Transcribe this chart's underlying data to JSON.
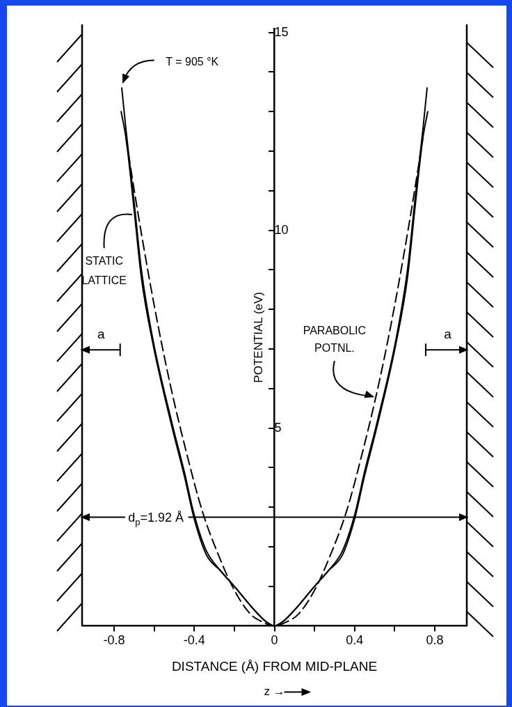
{
  "chart_data": {
    "type": "line",
    "xlabel": "DISTANCE (Å) FROM MID-PLANE",
    "ylabel": "POTENTIAL (eV)",
    "xlim": [
      -0.96,
      0.96
    ],
    "ylim": [
      0,
      15.1
    ],
    "xticks": [
      -0.8,
      {
        "value": -0.6,
        "label": null
      },
      -0.4,
      {
        "value": -0.2,
        "label": null
      },
      0,
      {
        "value": 0.2,
        "label": null
      },
      0.4,
      {
        "value": 0.6,
        "label": null
      },
      0.8
    ],
    "yticks": [
      {
        "value": 1,
        "label": null
      },
      {
        "value": 2,
        "label": null
      },
      {
        "value": 3,
        "label": null
      },
      {
        "value": 4,
        "label": null
      },
      5,
      {
        "value": 6,
        "label": null
      },
      {
        "value": 7,
        "label": null
      },
      {
        "value": 8,
        "label": null
      },
      {
        "value": 9,
        "label": null
      },
      10,
      {
        "value": 11,
        "label": null
      },
      {
        "value": 12,
        "label": null
      },
      {
        "value": 13,
        "label": null
      },
      {
        "value": 14,
        "label": null
      },
      15
    ],
    "grid": false,
    "legend": false,
    "marker": "none",
    "line_style": "solid",
    "series": [
      {
        "name": "STATIC LATTICE",
        "color": "#000000",
        "x": [
          -0.765,
          -0.74,
          -0.7,
          -0.664,
          -0.605,
          -0.51,
          -0.45,
          -0.4,
          -0.34,
          -0.27,
          -0.2,
          -0.1,
          -0.04,
          0,
          0.04,
          0.1,
          0.2,
          0.27,
          0.34,
          0.4,
          0.45,
          0.51,
          0.605,
          0.664,
          0.7,
          0.74,
          0.765
        ],
        "values": [
          13.0,
          12.3,
          10.5,
          8.8,
          7.1,
          5.0,
          3.8,
          2.7,
          1.8,
          1.4,
          1.0,
          0.4,
          0.1,
          0,
          0.1,
          0.4,
          1.0,
          1.4,
          1.8,
          2.7,
          3.8,
          5.0,
          7.1,
          8.8,
          10.5,
          12.3,
          13.0
        ]
      },
      {
        "name": "T = 905 °K",
        "color": "#000000",
        "x": [
          -0.762,
          -0.74,
          -0.7,
          -0.664,
          -0.605,
          -0.51,
          -0.45,
          -0.4,
          -0.34,
          -0.27,
          -0.2,
          -0.1,
          -0.04,
          0,
          0.04,
          0.1,
          0.2,
          0.27,
          0.34,
          0.4,
          0.45,
          0.51,
          0.605,
          0.664,
          0.7,
          0.74,
          0.762
        ],
        "values": [
          13.6,
          12.5,
          10.7,
          9.0,
          7.2,
          5.1,
          3.9,
          2.8,
          1.9,
          1.4,
          1.0,
          0.4,
          0.1,
          0,
          0.1,
          0.4,
          1.0,
          1.4,
          1.9,
          2.8,
          3.9,
          5.1,
          7.2,
          9.0,
          10.7,
          12.5,
          13.6
        ]
      },
      {
        "name": "PARABOLIC POTNL.",
        "color": "#000000",
        "line_style": "dashed",
        "x": [
          -0.74,
          -0.68,
          -0.6,
          -0.52,
          -0.44,
          -0.36,
          -0.28,
          -0.2,
          -0.12,
          -0.06,
          0,
          0.06,
          0.12,
          0.2,
          0.28,
          0.36,
          0.44,
          0.52,
          0.6,
          0.68,
          0.74
        ],
        "values": [
          12.3,
          10.4,
          8.1,
          6.1,
          4.4,
          2.9,
          1.8,
          0.9,
          0.3,
          0.1,
          0,
          0.1,
          0.3,
          0.9,
          1.8,
          2.9,
          4.4,
          6.1,
          8.1,
          10.4,
          12.3
        ]
      }
    ],
    "annotations": [
      "a",
      "a",
      "d$_{p}$=1.92 Å",
      "z →"
    ]
  }
}
